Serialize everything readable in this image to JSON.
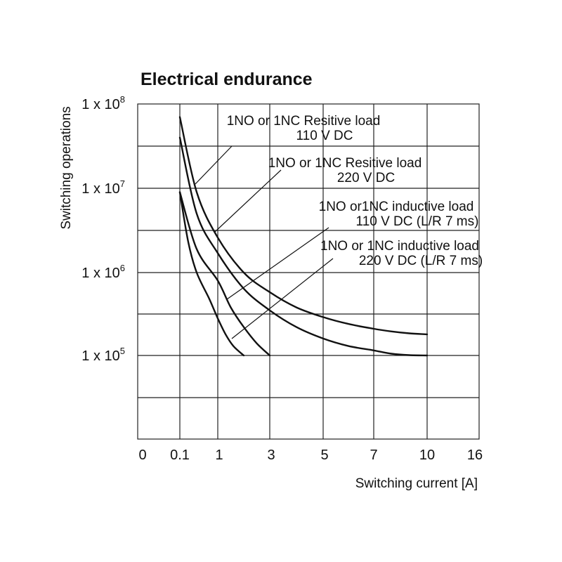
{
  "chart_data": {
    "type": "line",
    "title": "Electrical endurance",
    "xlabel": "Switching current [A]",
    "ylabel": "Switching operations",
    "x_ticks": [
      "0",
      "0.1",
      "1",
      "3",
      "5",
      "7",
      "10",
      "16"
    ],
    "y_ticks": [
      {
        "base": "1 x 10",
        "exp": "8"
      },
      {
        "base": "1 x 10",
        "exp": "7"
      },
      {
        "base": "1 x 10",
        "exp": "6"
      },
      {
        "base": "1 x 10",
        "exp": "5"
      }
    ],
    "y_scale": "log",
    "y_range": [
      10000,
      100000000
    ],
    "grid": true,
    "series": [
      {
        "name": "1NO or 1NC Resitive load 110 V DC",
        "label_lines": [
          "1NO or 1NC Resitive load",
          "110 V DC"
        ],
        "x": [
          0.1,
          0.5,
          1,
          2,
          3,
          4,
          5,
          6,
          7,
          8,
          9,
          10
        ],
        "y": [
          70000000,
          9000000,
          2600000,
          1000000,
          580000,
          380000,
          290000,
          240000,
          210000,
          195000,
          185000,
          180000
        ]
      },
      {
        "name": "1NO or 1NC Resitive load 220 V DC",
        "label_lines": [
          "1NO or 1NC Resitive load",
          "220 V DC"
        ],
        "x": [
          0.1,
          0.5,
          1,
          2,
          3,
          4,
          5,
          6,
          7,
          8,
          9,
          10
        ],
        "y": [
          40000000,
          5000000,
          1700000,
          640000,
          350000,
          220000,
          160000,
          130000,
          115000,
          105000,
          101000,
          100000
        ]
      },
      {
        "name": "1NO or1NC inductive load 110 V DC (L/R 7 ms)",
        "label_lines": [
          "1NO or1NC inductive load",
          "110 V DC (L/R 7 ms)"
        ],
        "x": [
          0.1,
          0.5,
          1,
          1.5,
          2,
          2.5,
          3
        ],
        "y": [
          9000000,
          1900000,
          800000,
          380000,
          220000,
          140000,
          100000
        ]
      },
      {
        "name": "1NO or 1NC inductive load 220 V DC (L/R 7 ms)",
        "label_lines": [
          "1NO or 1NC inductive load",
          "220 V DC (L/R 7 ms)"
        ],
        "x": [
          0.1,
          0.3,
          0.5,
          0.8,
          1,
          1.3,
          1.6,
          2
        ],
        "y": [
          9000000,
          2300000,
          1000000,
          480000,
          280000,
          180000,
          130000,
          100000
        ]
      }
    ]
  }
}
